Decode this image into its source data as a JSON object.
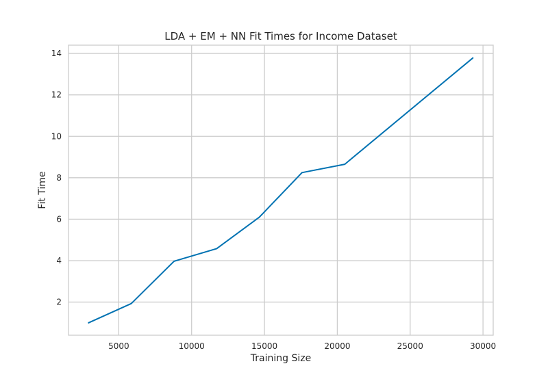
{
  "chart_data": {
    "type": "line",
    "title": "LDA + EM + NN Fit Times for Income Dataset",
    "xlabel": "Training Size",
    "ylabel": "Fit Time",
    "xlim": [
      1550,
      30700
    ],
    "ylim": [
      0.4,
      14.4
    ],
    "xticks": [
      5000,
      10000,
      15000,
      20000,
      25000,
      30000
    ],
    "yticks": [
      2,
      4,
      6,
      8,
      10,
      12,
      14
    ],
    "grid": true,
    "series": [
      {
        "name": "Fit Time",
        "color": "#0072b2",
        "x": [
          2930,
          5860,
          8790,
          11720,
          14650,
          17580,
          20510,
          29300
        ],
        "y": [
          1.0,
          1.93,
          3.97,
          4.58,
          6.1,
          8.25,
          8.65,
          13.78
        ]
      }
    ]
  }
}
